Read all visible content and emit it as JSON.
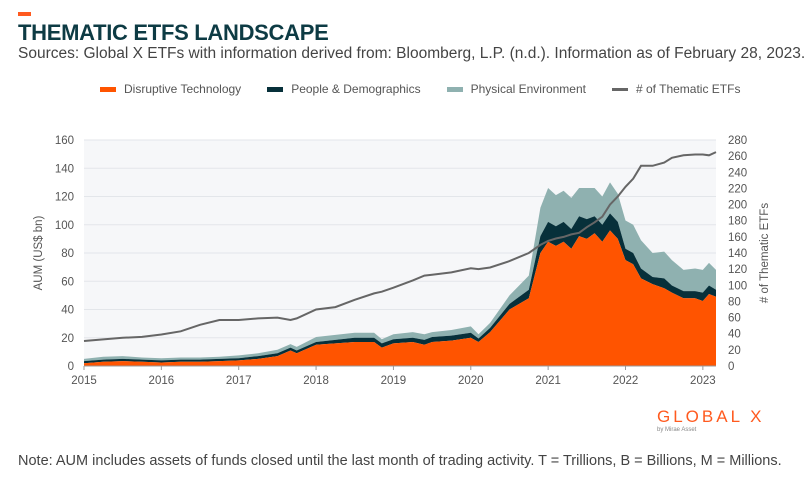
{
  "header": {
    "title": "THEMATIC ETFS LANDSCAPE",
    "subtitle": "Sources: Global X ETFs with information derived from: Bloomberg, L.P. (n.d.). Information as of February 28, 2023."
  },
  "note": "Note: AUM includes assets of funds closed until the last month of trading activity. T = Trillions, B = Billions, M = Millions.",
  "logo": {
    "text": "GLOBAL X",
    "sub": "by Mirae Asset"
  },
  "colors": {
    "disruptive": "#ff5400",
    "people": "#07303a",
    "physical": "#8fb1b0",
    "count": "#666666",
    "accent": "#ff5a1f",
    "plot_bg": "#f6f7f9"
  },
  "chart_data": {
    "type": "area",
    "title": "THEMATIC ETFS LANDSCAPE",
    "ylabel": "AUM (US$ bn)",
    "y2label": "# of Thematic ETFs",
    "ylim": [
      0,
      160
    ],
    "y2lim": [
      0,
      280
    ],
    "yticks": [
      "0",
      "20",
      "40",
      "60",
      "80",
      "100",
      "120",
      "140",
      "160"
    ],
    "y2ticks": [
      "0",
      "20",
      "40",
      "60",
      "80",
      "100",
      "120",
      "140",
      "160",
      "180",
      "200",
      "220",
      "240",
      "260",
      "280"
    ],
    "xticks": [
      "2015",
      "2016",
      "2017",
      "2018",
      "2019",
      "2020",
      "2021",
      "2022",
      "2023"
    ],
    "xlim": [
      2015,
      2023.17
    ],
    "grid": true,
    "legend_position": "top",
    "legend": [
      "Disruptive Technology",
      "People & Demographics",
      "Physical Environment",
      "# of Thematic ETFs"
    ],
    "x": [
      2015.0,
      2015.25,
      2015.5,
      2015.75,
      2016.0,
      2016.25,
      2016.5,
      2016.75,
      2017.0,
      2017.25,
      2017.5,
      2017.67,
      2017.75,
      2018.0,
      2018.25,
      2018.5,
      2018.75,
      2018.85,
      2019.0,
      2019.25,
      2019.4,
      2019.5,
      2019.75,
      2020.0,
      2020.1,
      2020.25,
      2020.5,
      2020.75,
      2020.9,
      2021.0,
      2021.1,
      2021.2,
      2021.3,
      2021.4,
      2021.5,
      2021.6,
      2021.7,
      2021.8,
      2021.9,
      2022.0,
      2022.1,
      2022.2,
      2022.35,
      2022.5,
      2022.6,
      2022.75,
      2022.9,
      2023.0,
      2023.08,
      2023.17
    ],
    "series": [
      {
        "name": "Disruptive Technology",
        "type": "area",
        "values": [
          2,
          3,
          3.5,
          3,
          2.5,
          3,
          3,
          3.5,
          4,
          5,
          7,
          11,
          9,
          15,
          16,
          17,
          17,
          13,
          16,
          17,
          15,
          17,
          18,
          20,
          17,
          24,
          40,
          48,
          80,
          88,
          85,
          88,
          83,
          92,
          90,
          94,
          88,
          96,
          90,
          75,
          72,
          62,
          58,
          55,
          52,
          48,
          48,
          46,
          51,
          49
        ]
      },
      {
        "name": "People & Demographics",
        "type": "area",
        "values": [
          1.5,
          1.5,
          1.5,
          1.5,
          1.5,
          1.5,
          1.5,
          1.5,
          1.5,
          2,
          2,
          2,
          2,
          2,
          2.5,
          3,
          3,
          3,
          3,
          3,
          3.5,
          3.5,
          3.5,
          3.5,
          2.5,
          3,
          4,
          6,
          12,
          14,
          14,
          14,
          14,
          14,
          14,
          12,
          12,
          12,
          12,
          8,
          8,
          7,
          5,
          7,
          5,
          5,
          5,
          6,
          6,
          5
        ]
      },
      {
        "name": "Physical Environment",
        "type": "area",
        "values": [
          1.5,
          2,
          2,
          1.5,
          1.5,
          1.5,
          1.5,
          1.5,
          2,
          2,
          2.5,
          2.5,
          2.5,
          3.5,
          3.5,
          3.5,
          3.5,
          3,
          3.5,
          4,
          4,
          3.5,
          4,
          4.5,
          3,
          3.5,
          6,
          10,
          20,
          24,
          22,
          22,
          22,
          20,
          22,
          20,
          20,
          22,
          20,
          20,
          20,
          20,
          17,
          19,
          18,
          15,
          16,
          16,
          16,
          14
        ]
      },
      {
        "name": "# of Thematic ETFs",
        "type": "line",
        "axis": "right",
        "values": [
          31,
          33,
          35,
          36,
          39,
          43,
          51,
          57,
          57,
          59,
          60,
          57,
          59,
          70,
          73,
          82,
          90,
          92,
          97,
          106,
          112,
          113,
          116,
          121,
          120,
          122,
          130,
          140,
          150,
          155,
          158,
          160,
          163,
          165,
          172,
          178,
          185,
          200,
          210,
          222,
          232,
          248,
          248,
          252,
          258,
          261,
          262,
          262,
          261,
          265
        ]
      }
    ]
  }
}
